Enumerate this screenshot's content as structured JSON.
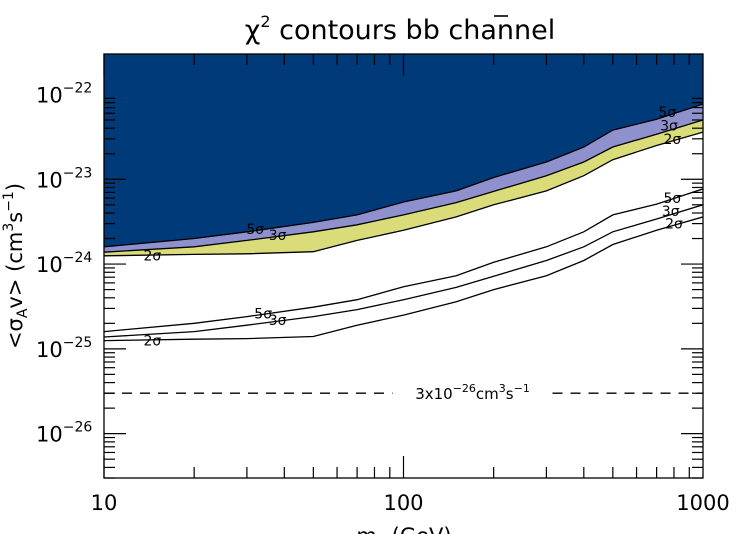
{
  "chart_data": {
    "type": "area",
    "title": "χ² contours bb̄ channel",
    "title_parts": {
      "chi": "χ",
      "chi_exp": "2",
      "rest": " contours b",
      "bbar": "b",
      "end": " channel"
    },
    "xlabel": "mχ (GeV)",
    "xlabel_parts": {
      "m": "m",
      "sub": "χ",
      "unit": " (GeV)"
    },
    "ylabel": "<σAv> (cm³s⁻¹)",
    "ylabel_parts": {
      "open": "<σ",
      "sub": "A",
      "mid": "v> (cm",
      "e1": "3",
      "s": "s",
      "e2": "−1",
      "close": ")"
    },
    "x_scale": "log",
    "y_scale": "log",
    "xlim": [
      10,
      1000
    ],
    "ylim": [
      3e-27,
      3e-22
    ],
    "x_ticks": [
      {
        "value": 10,
        "label": "10"
      },
      {
        "value": 100,
        "label": "100"
      },
      {
        "value": 1000,
        "label": "1000"
      }
    ],
    "y_ticks": [
      {
        "value": 1e-26,
        "base": "10",
        "exp": "−26"
      },
      {
        "value": 1e-25,
        "base": "10",
        "exp": "−25"
      },
      {
        "value": 1e-24,
        "base": "10",
        "exp": "−24"
      },
      {
        "value": 1e-23,
        "base": "10",
        "exp": "−23"
      },
      {
        "value": 1e-22,
        "base": "10",
        "exp": "−22"
      }
    ],
    "x": [
      10,
      20,
      30,
      50,
      70,
      100,
      150,
      200,
      300,
      400,
      500,
      700,
      1000
    ],
    "filled_regions": [
      {
        "level": "5σ",
        "color": "#003a78",
        "upper": [
          3e-22,
          3e-22,
          3e-22,
          3e-22,
          3e-22,
          3e-22,
          3e-22,
          3e-22,
          3e-22,
          3e-22,
          3e-22,
          3e-22,
          3e-22
        ],
        "lower": [
          1.6e-24,
          2e-24,
          2.4e-24,
          3.1e-24,
          3.8e-24,
          5.4e-24,
          7.3e-24,
          1.05e-23,
          1.6e-23,
          2.4e-23,
          3.8e-23,
          5.1e-23,
          7.7e-23
        ]
      },
      {
        "level": "3σ",
        "color": "#8f91cf",
        "upper": [
          1.6e-24,
          2e-24,
          2.4e-24,
          3.1e-24,
          3.8e-24,
          5.4e-24,
          7.3e-24,
          1.05e-23,
          1.6e-23,
          2.4e-23,
          3.8e-23,
          5.1e-23,
          7.7e-23
        ],
        "lower": [
          1.38e-24,
          1.6e-24,
          1.9e-24,
          2.4e-24,
          2.9e-24,
          3.8e-24,
          5.3e-24,
          7.2e-24,
          1.1e-23,
          1.6e-23,
          2.4e-23,
          3.4e-23,
          5e-23
        ]
      },
      {
        "level": "2σ",
        "color": "#d9dc78",
        "upper": [
          1.38e-24,
          1.6e-24,
          1.9e-24,
          2.4e-24,
          2.9e-24,
          3.8e-24,
          5.3e-24,
          7.2e-24,
          1.1e-23,
          1.6e-23,
          2.4e-23,
          3.4e-23,
          5e-23
        ],
        "lower": [
          1.25e-24,
          1.3e-24,
          1.32e-24,
          1.4e-24,
          1.9e-24,
          2.5e-24,
          3.6e-24,
          5e-24,
          7.3e-24,
          1.1e-23,
          1.7e-23,
          2.5e-23,
          3.6e-23
        ]
      }
    ],
    "line_contours": [
      {
        "level": "5σ",
        "values": [
          1.6e-25,
          2e-25,
          2.4e-25,
          3.1e-25,
          3.8e-25,
          5.4e-25,
          7.3e-25,
          1.05e-24,
          1.6e-24,
          2.4e-24,
          3.8e-24,
          5.1e-24,
          7.7e-24
        ]
      },
      {
        "level": "3σ",
        "values": [
          1.38e-25,
          1.6e-25,
          1.9e-25,
          2.4e-25,
          2.9e-25,
          3.8e-25,
          5.3e-25,
          7.2e-25,
          1.1e-24,
          1.6e-24,
          2.4e-24,
          3.4e-24,
          5e-24
        ]
      },
      {
        "level": "2σ",
        "values": [
          1.25e-25,
          1.3e-25,
          1.32e-25,
          1.4e-25,
          1.9e-25,
          2.5e-25,
          3.6e-25,
          5e-25,
          7.3e-25,
          1.1e-24,
          1.7e-24,
          2.5e-24,
          3.6e-24
        ]
      }
    ],
    "contour_labels": [
      {
        "set": "filled",
        "text": "5σ",
        "x": 32,
        "y": 2.6e-24
      },
      {
        "set": "filled",
        "text": "3σ",
        "x": 38,
        "y": 2.2e-24
      },
      {
        "set": "filled",
        "text": "2σ",
        "x": 14.5,
        "y": 1.26e-24
      },
      {
        "set": "filled",
        "text": "5σ",
        "x": 760,
        "y": 6.2e-23
      },
      {
        "set": "filled",
        "text": "3σ",
        "x": 770,
        "y": 4.3e-23
      },
      {
        "set": "filled",
        "text": "2σ",
        "x": 790,
        "y": 3e-23
      },
      {
        "set": "lines",
        "text": "5σ",
        "x": 34,
        "y": 2.6e-25
      },
      {
        "set": "lines",
        "text": "3σ",
        "x": 38,
        "y": 2.2e-25
      },
      {
        "set": "lines",
        "text": "2σ",
        "x": 14.5,
        "y": 1.26e-25
      },
      {
        "set": "lines",
        "text": "5σ",
        "x": 790,
        "y": 6e-24
      },
      {
        "set": "lines",
        "text": "3σ",
        "x": 780,
        "y": 4.2e-24
      },
      {
        "set": "lines",
        "text": "2σ",
        "x": 800,
        "y": 3e-24
      }
    ],
    "reference_line": {
      "value": 3e-26,
      "style": "dashed",
      "label_parts": {
        "pre": "3x10",
        "exp1": "−26",
        "mid": "cm",
        "exp2": "3",
        "s": "s",
        "exp3": "−1"
      },
      "label_x": 170
    },
    "grid": false
  }
}
